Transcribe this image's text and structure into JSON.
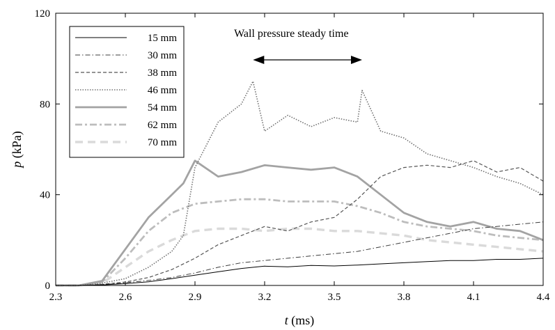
{
  "chart_data": {
    "type": "line",
    "title": "",
    "xlabel": {
      "symbol": "t",
      "unit": " (ms)"
    },
    "ylabel": {
      "symbol": "p",
      "unit": " (kPa)"
    },
    "xlim": [
      2.3,
      4.4
    ],
    "ylim": [
      0,
      120
    ],
    "xticks": [
      "2.3",
      "2.6",
      "2.9",
      "3.2",
      "3.5",
      "3.8",
      "4.1",
      "4.4"
    ],
    "yticks": [
      "0",
      "40",
      "80",
      "120"
    ],
    "grid": false,
    "legend_position": "top-left",
    "annotation": {
      "text": "Wall pressure steady time",
      "arrow_x": [
        3.15,
        3.62
      ]
    },
    "series": [
      {
        "name": "15 mm",
        "style": "solid-thin",
        "color": "#000000",
        "x": [
          2.3,
          2.4,
          2.5,
          2.6,
          2.7,
          2.8,
          2.9,
          3.0,
          3.1,
          3.2,
          3.3,
          3.4,
          3.5,
          3.6,
          3.7,
          3.8,
          3.9,
          4.0,
          4.1,
          4.2,
          4.3,
          4.4
        ],
        "values": [
          0,
          0,
          0.2,
          0.8,
          1.6,
          3,
          4.5,
          6,
          7.5,
          8.5,
          8.2,
          8.8,
          8.6,
          9,
          9.5,
          10,
          10.5,
          11,
          11,
          11.5,
          11.5,
          12
        ]
      },
      {
        "name": "30 mm",
        "style": "dash-dot",
        "color": "#3c3c3c",
        "x": [
          2.3,
          2.4,
          2.5,
          2.6,
          2.7,
          2.8,
          2.9,
          3.0,
          3.1,
          3.2,
          3.3,
          3.4,
          3.5,
          3.6,
          3.7,
          3.8,
          3.9,
          4.0,
          4.1,
          4.2,
          4.3,
          4.4
        ],
        "values": [
          0,
          0,
          0.4,
          1.2,
          2.2,
          3.5,
          5.5,
          8,
          10,
          11,
          12,
          13,
          14,
          15,
          17,
          19,
          21,
          23,
          25,
          26,
          27,
          28
        ]
      },
      {
        "name": "38 mm",
        "style": "dashed",
        "color": "#555555",
        "x": [
          2.3,
          2.4,
          2.5,
          2.6,
          2.7,
          2.8,
          2.9,
          3.0,
          3.1,
          3.2,
          3.3,
          3.4,
          3.5,
          3.6,
          3.7,
          3.8,
          3.9,
          4.0,
          4.1,
          4.2,
          4.3,
          4.4
        ],
        "values": [
          0,
          0,
          0.5,
          1.5,
          3.5,
          7,
          12,
          18,
          22,
          26,
          24,
          28,
          30,
          38,
          48,
          52,
          53,
          52,
          55,
          50,
          52,
          46
        ]
      },
      {
        "name": "46 mm",
        "style": "dotted",
        "color": "#707070",
        "x": [
          2.3,
          2.4,
          2.5,
          2.6,
          2.7,
          2.8,
          2.85,
          2.9,
          2.95,
          3.0,
          3.1,
          3.15,
          3.2,
          3.3,
          3.4,
          3.5,
          3.6,
          3.62,
          3.7,
          3.8,
          3.9,
          4.0,
          4.1,
          4.2,
          4.3,
          4.4
        ],
        "values": [
          0,
          0,
          1,
          3,
          8,
          15,
          22,
          52,
          62,
          72,
          80,
          90,
          68,
          75,
          70,
          74,
          72,
          86,
          68,
          65,
          58,
          55,
          52,
          48,
          45,
          40
        ]
      },
      {
        "name": "54 mm",
        "style": "solid-thick",
        "color": "#a3a3a3",
        "x": [
          2.3,
          2.4,
          2.5,
          2.6,
          2.7,
          2.8,
          2.85,
          2.9,
          3.0,
          3.1,
          3.2,
          3.3,
          3.4,
          3.5,
          3.6,
          3.7,
          3.8,
          3.9,
          4.0,
          4.1,
          4.2,
          4.3,
          4.4
        ],
        "values": [
          0,
          0,
          2,
          16,
          30,
          40,
          45,
          55,
          48,
          50,
          53,
          52,
          51,
          52,
          48,
          40,
          32,
          28,
          26,
          28,
          25,
          24,
          20
        ]
      },
      {
        "name": "62 mm",
        "style": "dash-dot-thick",
        "color": "#bdbdbd",
        "x": [
          2.3,
          2.4,
          2.5,
          2.6,
          2.7,
          2.8,
          2.9,
          3.0,
          3.1,
          3.2,
          3.3,
          3.4,
          3.5,
          3.6,
          3.7,
          3.8,
          3.9,
          4.0,
          4.1,
          4.2,
          4.3,
          4.4
        ],
        "values": [
          0,
          0,
          1.5,
          12,
          24,
          32,
          36,
          37,
          38,
          38,
          37,
          37,
          37,
          35,
          32,
          28,
          26,
          25,
          24,
          22,
          21,
          20
        ]
      },
      {
        "name": "70 mm",
        "style": "dashed-thick",
        "color": "#dadada",
        "x": [
          2.3,
          2.4,
          2.5,
          2.6,
          2.7,
          2.8,
          2.9,
          3.0,
          3.1,
          3.2,
          3.3,
          3.4,
          3.5,
          3.6,
          3.7,
          3.8,
          3.9,
          4.0,
          4.1,
          4.2,
          4.3,
          4.4
        ],
        "values": [
          0,
          0,
          1,
          8,
          15,
          20,
          24,
          25,
          25,
          24,
          25,
          25,
          24,
          24,
          23,
          22,
          20,
          19,
          18,
          17,
          16,
          15
        ]
      }
    ]
  }
}
